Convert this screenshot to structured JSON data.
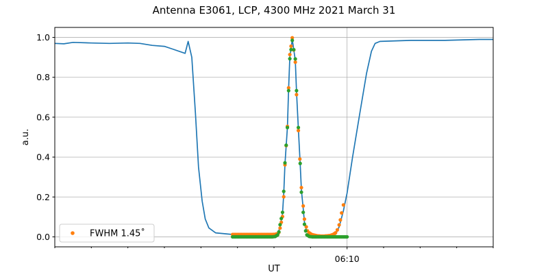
{
  "chart_data": {
    "type": "line",
    "title": "Antenna E3061, LCP, 4300 MHz 2021 March 31",
    "xlabel": "UT",
    "ylabel": "a.u.",
    "xlim": [
      "06:02:00",
      "06:14:00"
    ],
    "ylim": [
      -0.05,
      1.05
    ],
    "x_major_ticks": [
      {
        "t": "06:10:00",
        "label": "06:10"
      }
    ],
    "x_minor_ticks": [
      "06:02:00",
      "06:03:00",
      "06:04:00",
      "06:05:00",
      "06:06:00",
      "06:07:00",
      "06:08:00",
      "06:09:00",
      "06:11:00",
      "06:12:00",
      "06:13:00",
      "06:14:00"
    ],
    "y_ticks": [
      0.0,
      0.2,
      0.4,
      0.6,
      0.8,
      1.0
    ],
    "y_tick_labels": [
      "0.0",
      "0.2",
      "0.4",
      "0.6",
      "0.8",
      "1.0"
    ],
    "grid": "on (horizontal at y ticks, vertical at major x tick)",
    "legend": {
      "placement": "lower-left",
      "entries": [
        "FWHM 1.45˚"
      ]
    },
    "series": [
      {
        "style": "line",
        "color": "#1f77b4",
        "points": [
          [
            "06:02:00",
            0.97
          ],
          [
            "06:02:15",
            0.968
          ],
          [
            "06:02:30",
            0.975
          ],
          [
            "06:03:00",
            0.972
          ],
          [
            "06:03:30",
            0.97
          ],
          [
            "06:04:00",
            0.972
          ],
          [
            "06:04:20",
            0.97
          ],
          [
            "06:04:40",
            0.96
          ],
          [
            "06:05:00",
            0.955
          ],
          [
            "06:05:15",
            0.94
          ],
          [
            "06:05:34",
            0.92
          ],
          [
            "06:05:39",
            0.98
          ],
          [
            "06:05:45",
            0.9
          ],
          [
            "06:05:51",
            0.62
          ],
          [
            "06:05:56",
            0.35
          ],
          [
            "06:06:02",
            0.18
          ],
          [
            "06:06:07",
            0.09
          ],
          [
            "06:06:13",
            0.045
          ],
          [
            "06:06:24",
            0.02
          ],
          [
            "06:06:52",
            0.012
          ],
          [
            "06:08:00",
            0.01
          ],
          [
            "06:08:06",
            0.015
          ],
          [
            "06:08:08",
            0.03
          ],
          [
            "06:08:10",
            0.055
          ],
          [
            "06:08:14",
            0.115
          ],
          [
            "06:08:16",
            0.215
          ],
          [
            "06:08:18",
            0.365
          ],
          [
            "06:08:22",
            0.55
          ],
          [
            "06:08:24",
            0.74
          ],
          [
            "06:08:26",
            0.9
          ],
          [
            "06:08:30",
            0.99
          ],
          [
            "06:08:35",
            0.885
          ],
          [
            "06:08:37",
            0.725
          ],
          [
            "06:08:40",
            0.54
          ],
          [
            "06:08:43",
            0.368
          ],
          [
            "06:08:45",
            0.235
          ],
          [
            "06:08:48",
            0.14
          ],
          [
            "06:08:50",
            0.075
          ],
          [
            "06:08:53",
            0.035
          ],
          [
            "06:09:00",
            0.012
          ],
          [
            "06:09:30",
            0.004
          ],
          [
            "06:09:41",
            0.012
          ],
          [
            "06:09:47",
            0.05
          ],
          [
            "06:09:54",
            0.13
          ],
          [
            "06:10:00",
            0.22
          ],
          [
            "06:10:09",
            0.4
          ],
          [
            "06:10:21",
            0.62
          ],
          [
            "06:10:32",
            0.82
          ],
          [
            "06:10:40",
            0.93
          ],
          [
            "06:10:46",
            0.97
          ],
          [
            "06:10:54",
            0.98
          ],
          [
            "06:11:45",
            0.985
          ],
          [
            "06:12:41",
            0.985
          ],
          [
            "06:13:37",
            0.99
          ],
          [
            "06:14:00",
            0.99
          ]
        ]
      },
      {
        "name": "FWHM 1.45˚",
        "style": "dots",
        "color": "#ff7f0e",
        "points": [
          [
            "06:06:52",
            0.012
          ],
          [
            "06:06:57",
            0.012
          ],
          [
            "06:07:02",
            0.012
          ],
          [
            "06:07:07",
            0.012
          ],
          [
            "06:07:12",
            0.012
          ],
          [
            "06:07:17",
            0.012
          ],
          [
            "06:07:22",
            0.012
          ],
          [
            "06:07:27",
            0.012
          ],
          [
            "06:07:32",
            0.012
          ],
          [
            "06:07:37",
            0.012
          ],
          [
            "06:07:42",
            0.012
          ],
          [
            "06:07:47",
            0.012
          ],
          [
            "06:07:52",
            0.012
          ],
          [
            "06:07:57",
            0.012
          ],
          [
            "06:08:02",
            0.013
          ],
          [
            "06:08:06",
            0.016
          ],
          [
            "06:08:08",
            0.022
          ],
          [
            "06:08:10",
            0.044
          ],
          [
            "06:08:14",
            0.102
          ],
          [
            "06:08:16",
            0.201
          ],
          [
            "06:08:18",
            0.361
          ],
          [
            "06:08:22",
            0.554
          ],
          [
            "06:08:24",
            0.747
          ],
          [
            "06:08:26",
            0.914
          ],
          [
            "06:08:30",
            0.998
          ],
          [
            "06:08:35",
            0.876
          ],
          [
            "06:08:37",
            0.713
          ],
          [
            "06:08:40",
            0.533
          ],
          [
            "06:08:45",
            0.247
          ],
          [
            "06:08:48",
            0.155
          ],
          [
            "06:08:50",
            0.089
          ],
          [
            "06:08:53",
            0.05
          ],
          [
            "06:08:55",
            0.03
          ],
          [
            "06:08:58",
            0.02
          ],
          [
            "06:09:02",
            0.012
          ],
          [
            "06:09:07",
            0.008
          ],
          [
            "06:09:12",
            0.005
          ],
          [
            "06:09:17",
            0.004
          ],
          [
            "06:09:22",
            0.004
          ],
          [
            "06:09:27",
            0.005
          ],
          [
            "06:09:32",
            0.007
          ],
          [
            "06:09:37",
            0.012
          ],
          [
            "06:09:41",
            0.02
          ],
          [
            "06:09:44",
            0.035
          ],
          [
            "06:09:47",
            0.06
          ],
          [
            "06:09:49",
            0.085
          ],
          [
            "06:09:51",
            0.12
          ],
          [
            "06:09:54",
            0.16
          ]
        ]
      },
      {
        "style": "dots",
        "color": "#2ca02c",
        "points": [
          [
            "06:06:52",
            0.0
          ],
          [
            "06:06:57",
            0.0
          ],
          [
            "06:07:02",
            0.0
          ],
          [
            "06:07:07",
            0.0
          ],
          [
            "06:07:12",
            0.0
          ],
          [
            "06:07:17",
            0.0
          ],
          [
            "06:07:22",
            0.0
          ],
          [
            "06:07:27",
            0.0
          ],
          [
            "06:07:32",
            0.0
          ],
          [
            "06:07:37",
            0.0
          ],
          [
            "06:07:42",
            0.0
          ],
          [
            "06:07:47",
            0.0
          ],
          [
            "06:07:52",
            0.0
          ],
          [
            "06:07:57",
            0.0
          ],
          [
            "06:08:02",
            0.002
          ],
          [
            "06:08:06",
            0.01
          ],
          [
            "06:08:08",
            0.025
          ],
          [
            "06:08:10",
            0.061
          ],
          [
            "06:08:14",
            0.123
          ],
          [
            "06:08:16",
            0.228
          ],
          [
            "06:08:18",
            0.371
          ],
          [
            "06:08:22",
            0.548
          ],
          [
            "06:08:24",
            0.733
          ],
          [
            "06:08:26",
            0.893
          ],
          [
            "06:08:30",
            0.985
          ],
          [
            "06:08:35",
            0.892
          ],
          [
            "06:08:37",
            0.733
          ],
          [
            "06:08:40",
            0.548
          ],
          [
            "06:08:43",
            0.368
          ],
          [
            "06:08:45",
            0.224
          ],
          [
            "06:08:48",
            0.123
          ],
          [
            "06:08:50",
            0.063
          ],
          [
            "06:08:52",
            0.03
          ],
          [
            "06:08:54",
            0.01
          ],
          [
            "06:08:58",
            0.002
          ],
          [
            "06:09:03",
            0.0
          ],
          [
            "06:09:08",
            0.0
          ],
          [
            "06:09:13",
            0.0
          ],
          [
            "06:09:18",
            0.0
          ],
          [
            "06:09:23",
            0.0
          ],
          [
            "06:09:28",
            0.0
          ],
          [
            "06:09:33",
            0.0
          ],
          [
            "06:09:38",
            0.0
          ],
          [
            "06:09:43",
            0.0
          ],
          [
            "06:09:48",
            0.0
          ],
          [
            "06:09:53",
            0.0
          ],
          [
            "06:10:00",
            0.0
          ]
        ]
      }
    ]
  }
}
